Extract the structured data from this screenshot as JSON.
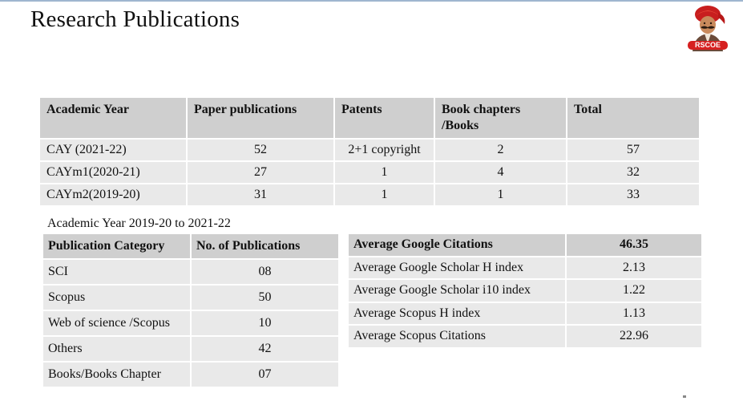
{
  "slide": {
    "title": "Research Publications",
    "logo_text": "RSCOE"
  },
  "year_table": {
    "headers": [
      "Academic Year",
      "Paper publications",
      "Patents",
      "Book chapters /Books",
      "Total"
    ],
    "rows": [
      [
        "CAY (2021-22)",
        "52",
        "2+1 copyright",
        "2",
        "57"
      ],
      [
        "CAYm1(2020-21)",
        "27",
        "1",
        "4",
        "32"
      ],
      [
        "CAYm2(2019-20)",
        "31",
        "1",
        "1",
        "33"
      ]
    ]
  },
  "category_table": {
    "caption": "Academic Year 2019-20 to 2021-22",
    "headers": [
      "Publication Category",
      "No. of Publications"
    ],
    "rows": [
      [
        "SCI",
        "08"
      ],
      [
        "Scopus",
        "50"
      ],
      [
        "Web of science /Scopus",
        "10"
      ],
      [
        "Others",
        "42"
      ],
      [
        "Books/Books Chapter",
        "07"
      ]
    ]
  },
  "citation_table": {
    "rows": [
      [
        "Average Google Citations",
        "46.35"
      ],
      [
        "Average Google Scholar H index",
        "2.13"
      ],
      [
        "Average Google Scholar i10 index",
        "1.22"
      ],
      [
        "Average Scopus H index",
        "1.13"
      ],
      [
        "Average Scopus Citations",
        "22.96"
      ]
    ]
  },
  "colors": {
    "header_bg": "#cfcfcf",
    "cell_bg": "#e9e9e9",
    "logo_red": "#d62020"
  }
}
